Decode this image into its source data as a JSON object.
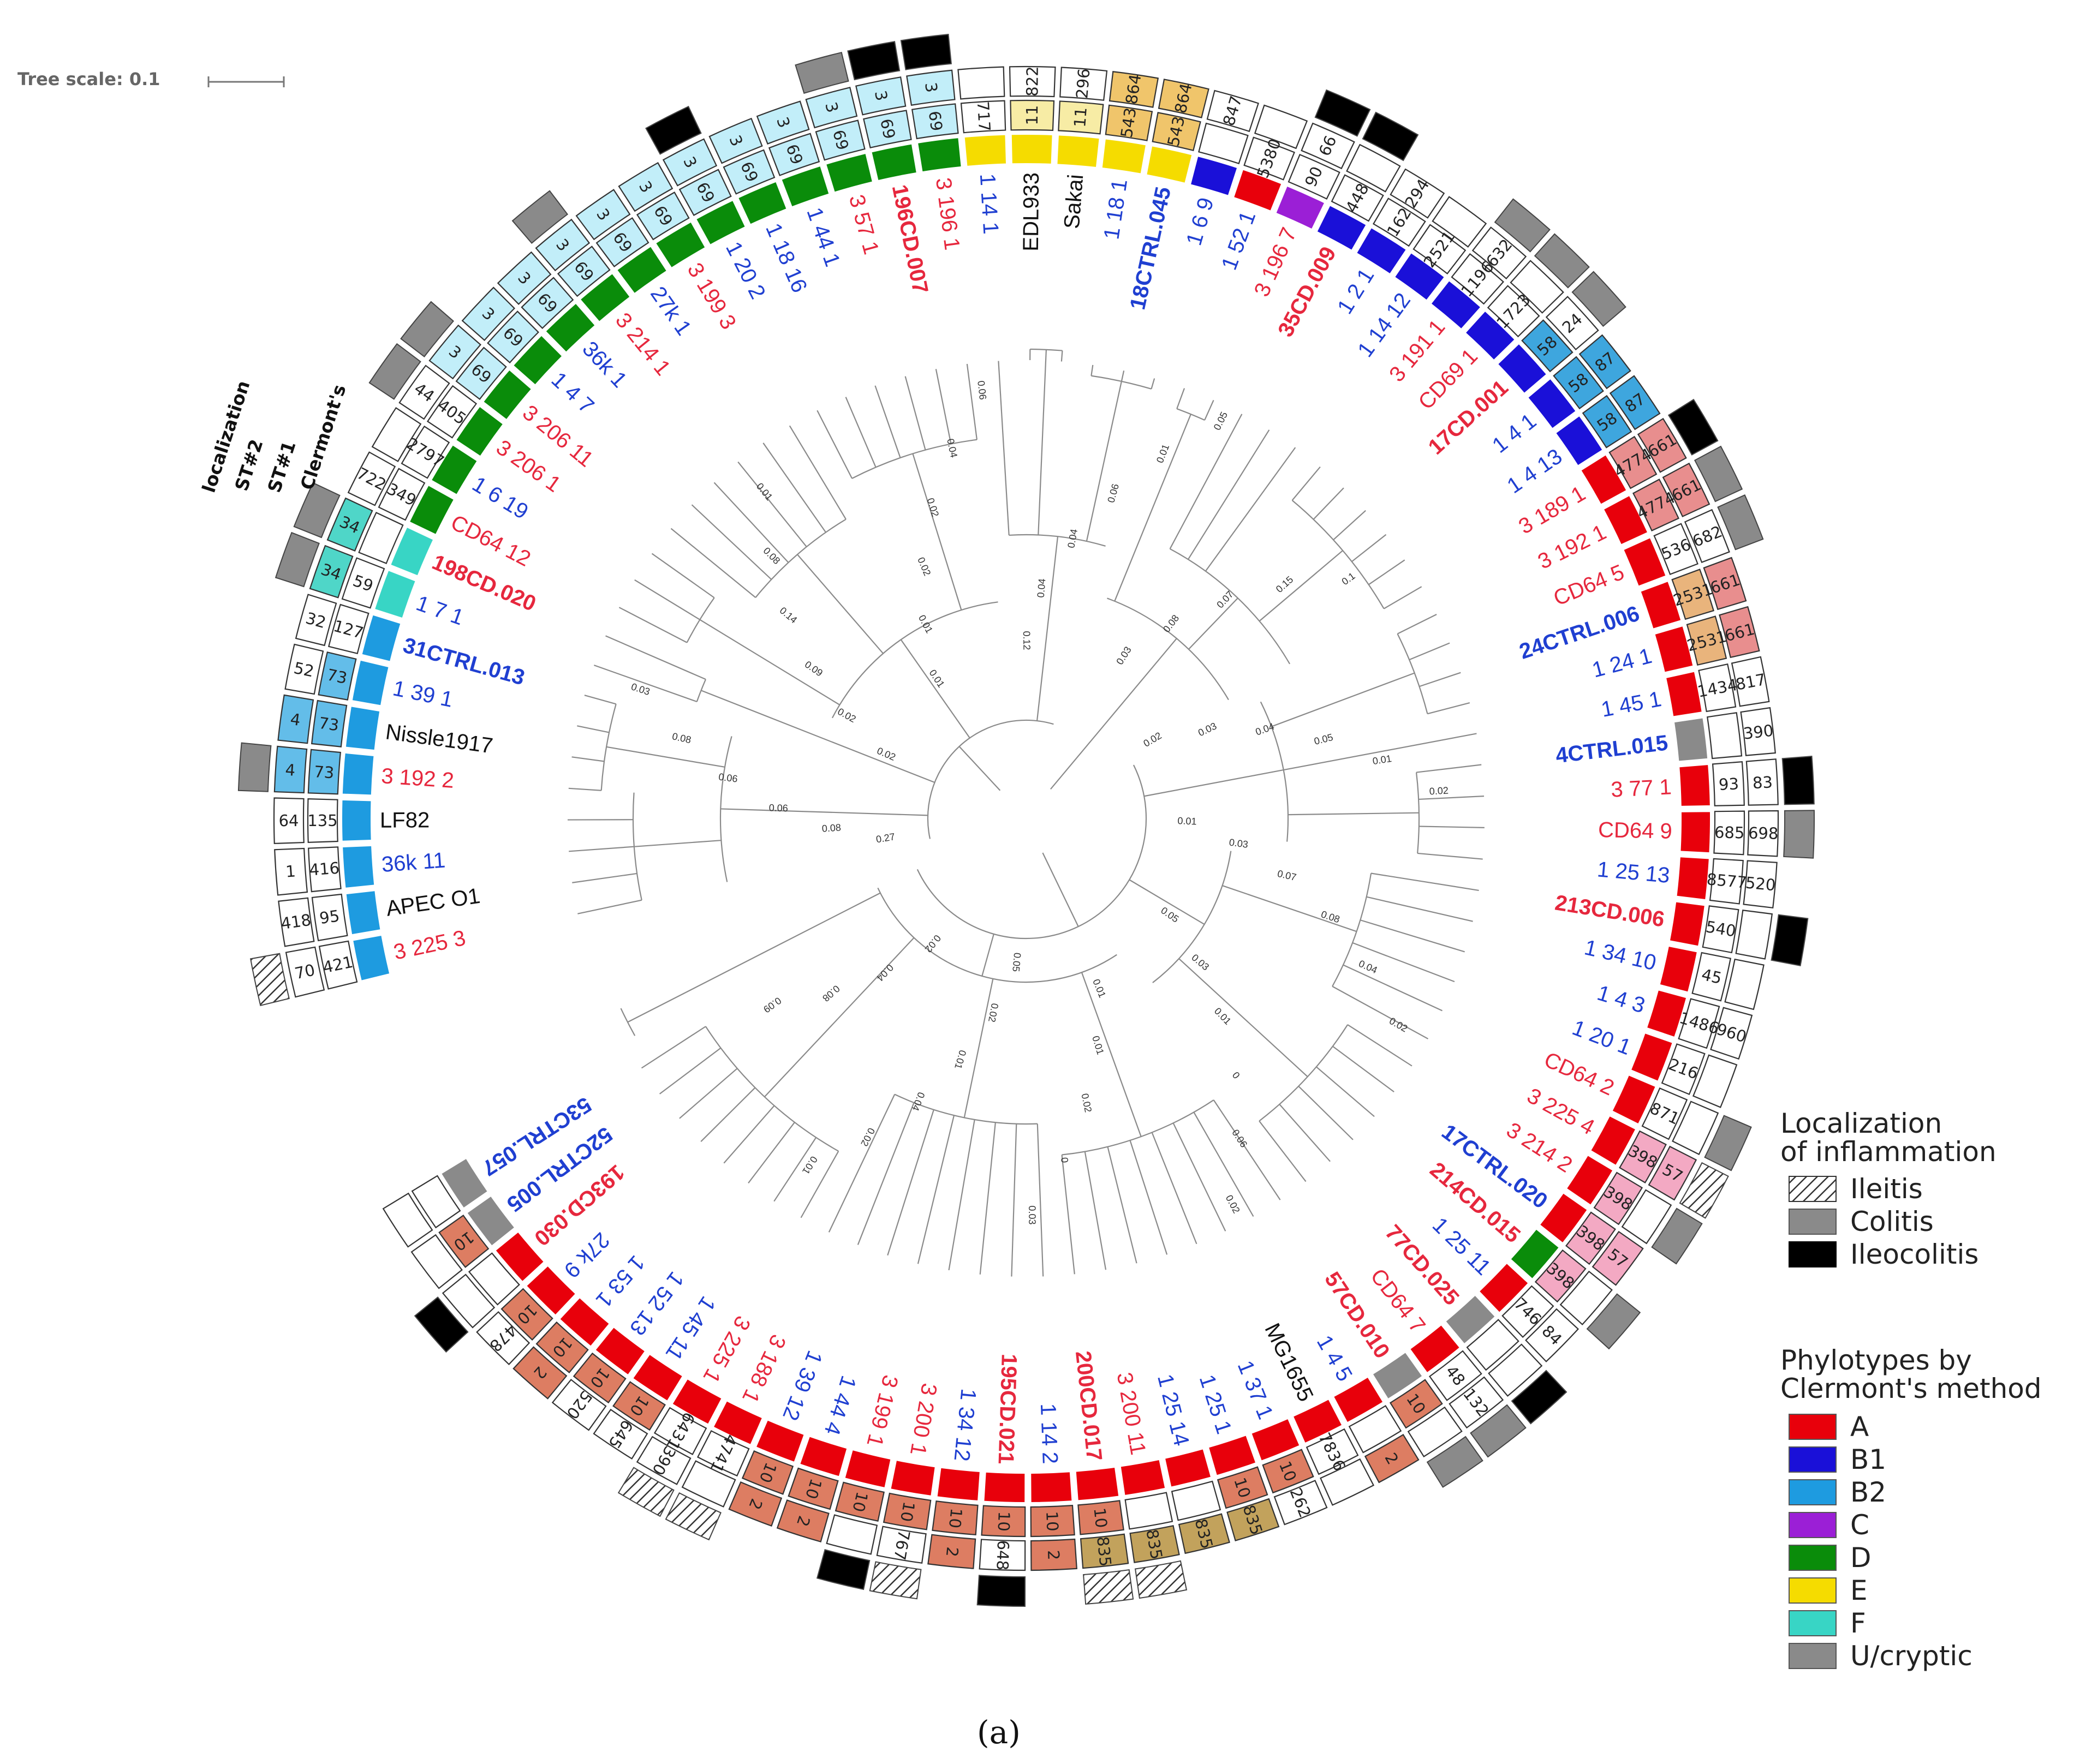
{
  "tree_scale": {
    "label": "Tree scale: 0.1"
  },
  "caption": "(a)",
  "ring_labels": {
    "localization": "localization",
    "st2": "ST#2",
    "st1": "ST#1",
    "clermont": "Clermont's"
  },
  "legend_localization": {
    "title_line1": "Localization",
    "title_line2": "of inflammation",
    "items": [
      {
        "label": "Ileitis",
        "key": "I"
      },
      {
        "label": "Colitis",
        "key": "C"
      },
      {
        "label": "Ileocolitis",
        "key": "IC"
      }
    ]
  },
  "legend_phylotypes": {
    "title_line1": "Phylotypes by",
    "title_line2": "Clermont's method",
    "items": [
      {
        "label": "A",
        "color": "#e8000b"
      },
      {
        "label": "B1",
        "color": "#1a10d8"
      },
      {
        "label": "B2",
        "color": "#1e9be0"
      },
      {
        "label": "C",
        "color": "#9b1fd6"
      },
      {
        "label": "D",
        "color": "#0a8c0a"
      },
      {
        "label": "E",
        "color": "#f5dc00"
      },
      {
        "label": "F",
        "color": "#38d5c5"
      },
      {
        "label": "U/cryptic",
        "color": "#8a8a8a"
      }
    ]
  },
  "chart_data": {
    "type": "circular-phylogenetic-tree",
    "ring_order_inner_to_outer": [
      "Clermont's",
      "ST#1",
      "ST#2",
      "localization"
    ],
    "leaves": [
      {
        "label": "3 225 3",
        "color": "red",
        "bold": false,
        "phylo": "B2",
        "st1": "421",
        "st2": "70",
        "loc": "I"
      },
      {
        "label": "APEC O1",
        "color": "black",
        "bold": false,
        "phylo": "B2",
        "st1": "95",
        "st2": "418",
        "loc": ""
      },
      {
        "label": "36k 11",
        "color": "blue",
        "bold": false,
        "phylo": "B2",
        "st1": "416",
        "st2": "1",
        "loc": ""
      },
      {
        "label": "LF82",
        "color": "black",
        "bold": false,
        "phylo": "B2",
        "st1": "135",
        "st2": "64",
        "loc": ""
      },
      {
        "label": "3 192 2",
        "color": "red",
        "bold": false,
        "phylo": "B2",
        "st1": "73",
        "st2": "4",
        "loc": "C"
      },
      {
        "label": "Nissle1917",
        "color": "black",
        "bold": false,
        "phylo": "B2",
        "st1": "73",
        "st2": "4",
        "loc": ""
      },
      {
        "label": "1 39 1",
        "color": "blue",
        "bold": false,
        "phylo": "B2",
        "st1": "73",
        "st2": "52",
        "loc": ""
      },
      {
        "label": "31CTRL.013",
        "color": "blue",
        "bold": true,
        "phylo": "B2",
        "st1": "127",
        "st2": "32",
        "loc": ""
      },
      {
        "label": "1 7 1",
        "color": "blue",
        "bold": false,
        "phylo": "F",
        "st1": "59",
        "st2": "34",
        "loc": "C"
      },
      {
        "label": "198CD.020",
        "color": "red",
        "bold": true,
        "phylo": "F",
        "st1": "",
        "st2": "34",
        "loc": "C"
      },
      {
        "label": "CD64 12",
        "color": "red",
        "bold": false,
        "phylo": "D",
        "st1": "349",
        "st2": "722",
        "loc": ""
      },
      {
        "label": "1 6 19",
        "color": "blue",
        "bold": false,
        "phylo": "D",
        "st1": "2797",
        "st2": "",
        "loc": ""
      },
      {
        "label": "3 206 1",
        "color": "red",
        "bold": false,
        "phylo": "D",
        "st1": "405",
        "st2": "44",
        "loc": "C"
      },
      {
        "label": "3 206 11",
        "color": "red",
        "bold": false,
        "phylo": "D",
        "st1": "69",
        "st2": "3",
        "loc": "C"
      },
      {
        "label": "1 4 7",
        "color": "blue",
        "bold": false,
        "phylo": "D",
        "st1": "69",
        "st2": "3",
        "loc": ""
      },
      {
        "label": "36k 1",
        "color": "blue",
        "bold": false,
        "phylo": "D",
        "st1": "69",
        "st2": "3",
        "loc": ""
      },
      {
        "label": "3 214 1",
        "color": "red",
        "bold": false,
        "phylo": "D",
        "st1": "69",
        "st2": "3",
        "loc": "C"
      },
      {
        "label": "27k 1",
        "color": "blue",
        "bold": false,
        "phylo": "D",
        "st1": "69",
        "st2": "3",
        "loc": ""
      },
      {
        "label": "3 199 3",
        "color": "red",
        "bold": false,
        "phylo": "D",
        "st1": "69",
        "st2": "3",
        "loc": ""
      },
      {
        "label": "1 20 2",
        "color": "blue",
        "bold": false,
        "phylo": "D",
        "st1": "69",
        "st2": "3",
        "loc": "IC"
      },
      {
        "label": "1 18 16",
        "color": "blue",
        "bold": false,
        "phylo": "D",
        "st1": "69",
        "st2": "3",
        "loc": ""
      },
      {
        "label": "1 44 1",
        "color": "blue",
        "bold": false,
        "phylo": "D",
        "st1": "69",
        "st2": "3",
        "loc": ""
      },
      {
        "label": "3 57 1",
        "color": "red",
        "bold": false,
        "phylo": "D",
        "st1": "69",
        "st2": "3",
        "loc": "C"
      },
      {
        "label": "196CD.007",
        "color": "red",
        "bold": true,
        "phylo": "D",
        "st1": "69",
        "st2": "3",
        "loc": "IC"
      },
      {
        "label": "3 196 1",
        "color": "red",
        "bold": false,
        "phylo": "D",
        "st1": "69",
        "st2": "3",
        "loc": "IC"
      },
      {
        "label": "1 14 1",
        "color": "blue",
        "bold": false,
        "phylo": "E",
        "st1": "717",
        "st2": "",
        "loc": ""
      },
      {
        "label": "EDL933",
        "color": "black",
        "bold": false,
        "phylo": "E",
        "st1": "11",
        "st2": "822",
        "loc": ""
      },
      {
        "label": "Sakai",
        "color": "black",
        "bold": false,
        "phylo": "E",
        "st1": "11",
        "st2": "296",
        "loc": ""
      },
      {
        "label": "1 18 1",
        "color": "blue",
        "bold": false,
        "phylo": "E",
        "st1": "543",
        "st2": "864",
        "loc": ""
      },
      {
        "label": "18CTRL.045",
        "color": "blue",
        "bold": true,
        "phylo": "E",
        "st1": "543",
        "st2": "864",
        "loc": ""
      },
      {
        "label": "1 6 9",
        "color": "blue",
        "bold": false,
        "phylo": "B1",
        "st1": "",
        "st2": "847",
        "loc": ""
      },
      {
        "label": "1 52 1",
        "color": "blue",
        "bold": false,
        "phylo": "A",
        "st1": "5380",
        "st2": "",
        "loc": ""
      },
      {
        "label": "3 196 7",
        "color": "red",
        "bold": false,
        "phylo": "C",
        "st1": "90",
        "st2": "66",
        "loc": "IC"
      },
      {
        "label": "35CD.009",
        "color": "red",
        "bold": true,
        "phylo": "B1",
        "st1": "448",
        "st2": "",
        "loc": "IC"
      },
      {
        "label": "1 2 1",
        "color": "blue",
        "bold": false,
        "phylo": "B1",
        "st1": "162",
        "st2": "294",
        "loc": ""
      },
      {
        "label": "1 14 12",
        "color": "blue",
        "bold": false,
        "phylo": "B1",
        "st1": "2521",
        "st2": "",
        "loc": ""
      },
      {
        "label": "3 191 1",
        "color": "red",
        "bold": false,
        "phylo": "B1",
        "st1": "1196",
        "st2": "632",
        "loc": "C"
      },
      {
        "label": "CD69 1",
        "color": "red",
        "bold": false,
        "phylo": "B1",
        "st1": "1723",
        "st2": "",
        "loc": "C"
      },
      {
        "label": "17CD.001",
        "color": "red",
        "bold": true,
        "phylo": "B1",
        "st1": "58",
        "st2": "24",
        "loc": "C"
      },
      {
        "label": "1 4 1",
        "color": "blue",
        "bold": false,
        "phylo": "B1",
        "st1": "58",
        "st2": "87",
        "loc": ""
      },
      {
        "label": "1 4 13",
        "color": "blue",
        "bold": false,
        "phylo": "B1",
        "st1": "58",
        "st2": "87",
        "loc": ""
      },
      {
        "label": "3 189 1",
        "color": "red",
        "bold": false,
        "phylo": "A",
        "st1": "4774",
        "st2": "661",
        "loc": "IC"
      },
      {
        "label": "3 192 1",
        "color": "red",
        "bold": false,
        "phylo": "A",
        "st1": "4774",
        "st2": "661",
        "loc": "C"
      },
      {
        "label": "CD64 5",
        "color": "red",
        "bold": false,
        "phylo": "A",
        "st1": "536",
        "st2": "682",
        "loc": "C"
      },
      {
        "label": "24CTRL.006",
        "color": "blue",
        "bold": true,
        "phylo": "A",
        "st1": "2531",
        "st2": "661",
        "loc": ""
      },
      {
        "label": "1 24 1",
        "color": "blue",
        "bold": false,
        "phylo": "A",
        "st1": "2531",
        "st2": "661",
        "loc": ""
      },
      {
        "label": "1 45 1",
        "color": "blue",
        "bold": false,
        "phylo": "A",
        "st1": "1434",
        "st2": "817",
        "loc": ""
      },
      {
        "label": "4CTRL.015",
        "color": "blue",
        "bold": true,
        "phylo": "U",
        "st1": "",
        "st2": "390",
        "loc": ""
      },
      {
        "label": "3 77 1",
        "color": "red",
        "bold": false,
        "phylo": "A",
        "st1": "93",
        "st2": "83",
        "loc": "IC"
      },
      {
        "label": "CD64 9",
        "color": "red",
        "bold": false,
        "phylo": "A",
        "st1": "685",
        "st2": "698",
        "loc": "C"
      },
      {
        "label": "1 25 13",
        "color": "blue",
        "bold": false,
        "phylo": "A",
        "st1": "8577",
        "st2": "520",
        "loc": ""
      },
      {
        "label": "213CD.006",
        "color": "red",
        "bold": true,
        "phylo": "A",
        "st1": "540",
        "st2": "",
        "loc": "IC"
      },
      {
        "label": "1 34 10",
        "color": "blue",
        "bold": false,
        "phylo": "A",
        "st1": "45",
        "st2": "",
        "loc": ""
      },
      {
        "label": "1 4 3",
        "color": "blue",
        "bold": false,
        "phylo": "A",
        "st1": "1486",
        "st2": "960",
        "loc": ""
      },
      {
        "label": "1 20 1",
        "color": "blue",
        "bold": false,
        "phylo": "A",
        "st1": "216",
        "st2": "",
        "loc": ""
      },
      {
        "label": "CD64 2",
        "color": "red",
        "bold": false,
        "phylo": "A",
        "st1": "871",
        "st2": "",
        "loc": "C"
      },
      {
        "label": "3 225 4",
        "color": "red",
        "bold": false,
        "phylo": "A",
        "st1": "398",
        "st2": "57",
        "loc": "I"
      },
      {
        "label": "3 214 2",
        "color": "red",
        "bold": false,
        "phylo": "A",
        "st1": "398",
        "st2": "",
        "loc": "C"
      },
      {
        "label": "17CTRL.020",
        "color": "blue",
        "bold": true,
        "phylo": "A",
        "st1": "398",
        "st2": "57",
        "loc": ""
      },
      {
        "label": "214CD.015",
        "color": "red",
        "bold": true,
        "phylo": "D",
        "st1": "398",
        "st2": "",
        "loc": "C"
      },
      {
        "label": "1 25 11",
        "color": "blue",
        "bold": false,
        "phylo": "A",
        "st1": "746",
        "st2": "84",
        "loc": ""
      },
      {
        "label": "77CD.025",
        "color": "red",
        "bold": true,
        "phylo": "U",
        "st1": "",
        "st2": "",
        "loc": "IC"
      },
      {
        "label": "CD64 7",
        "color": "red",
        "bold": false,
        "phylo": "A",
        "st1": "48",
        "st2": "132",
        "loc": "C"
      },
      {
        "label": "57CD.010",
        "color": "red",
        "bold": true,
        "phylo": "U",
        "st1": "10",
        "st2": "",
        "loc": "C"
      },
      {
        "label": "1 4 5",
        "color": "blue",
        "bold": false,
        "phylo": "A",
        "st1": "",
        "st2": "2",
        "loc": ""
      },
      {
        "label": "MG1655",
        "color": "black",
        "bold": false,
        "phylo": "A",
        "st1": "7836",
        "st2": "",
        "loc": ""
      },
      {
        "label": "1 37 1",
        "color": "blue",
        "bold": false,
        "phylo": "A",
        "st1": "10",
        "st2": "262",
        "loc": ""
      },
      {
        "label": "1 25 1",
        "color": "blue",
        "bold": false,
        "phylo": "A",
        "st1": "10",
        "st2": "835",
        "loc": ""
      },
      {
        "label": "1 25 14",
        "color": "blue",
        "bold": false,
        "phylo": "A",
        "st1": "",
        "st2": "835",
        "loc": ""
      },
      {
        "label": "3 200 11",
        "color": "red",
        "bold": false,
        "phylo": "A",
        "st1": "",
        "st2": "835",
        "loc": "I"
      },
      {
        "label": "200CD.017",
        "color": "red",
        "bold": true,
        "phylo": "A",
        "st1": "10",
        "st2": "835",
        "loc": "I"
      },
      {
        "label": "1 14 2",
        "color": "blue",
        "bold": false,
        "phylo": "A",
        "st1": "10",
        "st2": "2",
        "loc": ""
      },
      {
        "label": "195CD.021",
        "color": "red",
        "bold": true,
        "phylo": "A",
        "st1": "10",
        "st2": "648",
        "loc": "IC"
      },
      {
        "label": "1 34 12",
        "color": "blue",
        "bold": false,
        "phylo": "A",
        "st1": "10",
        "st2": "2",
        "loc": ""
      },
      {
        "label": "3 200 1",
        "color": "red",
        "bold": false,
        "phylo": "A",
        "st1": "10",
        "st2": "767",
        "loc": "I"
      },
      {
        "label": "3 199 1",
        "color": "red",
        "bold": false,
        "phylo": "A",
        "st1": "10",
        "st2": "",
        "loc": "IC"
      },
      {
        "label": "1 44 4",
        "color": "blue",
        "bold": false,
        "phylo": "A",
        "st1": "10",
        "st2": "2",
        "loc": ""
      },
      {
        "label": "1 39 12",
        "color": "blue",
        "bold": false,
        "phylo": "A",
        "st1": "10",
        "st2": "2",
        "loc": ""
      },
      {
        "label": "3 188 1",
        "color": "red",
        "bold": false,
        "phylo": "A",
        "st1": "4741",
        "st2": "",
        "loc": "I"
      },
      {
        "label": "3 225 1",
        "color": "red",
        "bold": false,
        "phylo": "A",
        "st1": "6431",
        "st2": "390",
        "loc": "I"
      },
      {
        "label": "1 45 11",
        "color": "blue",
        "bold": false,
        "phylo": "A",
        "st1": "10",
        "st2": "645",
        "loc": ""
      },
      {
        "label": "1 52 13",
        "color": "blue",
        "bold": false,
        "phylo": "A",
        "st1": "10",
        "st2": "520",
        "loc": ""
      },
      {
        "label": "1 53 1",
        "color": "blue",
        "bold": false,
        "phylo": "A",
        "st1": "10",
        "st2": "2",
        "loc": ""
      },
      {
        "label": "27k 9",
        "color": "blue",
        "bold": false,
        "phylo": "A",
        "st1": "10",
        "st2": "478",
        "loc": ""
      },
      {
        "label": "193CD.030",
        "color": "red",
        "bold": true,
        "phylo": "A",
        "st1": "",
        "st2": "",
        "loc": "IC"
      },
      {
        "label": "52CTRL.005",
        "color": "blue",
        "bold": true,
        "phylo": "U",
        "st1": "10",
        "st2": "",
        "loc": ""
      },
      {
        "label": "53CTRL.057",
        "color": "blue",
        "bold": true,
        "phylo": "U",
        "st1": "",
        "st2": "",
        "loc": ""
      }
    ],
    "branch_length_labels": [
      "0.27",
      "0.08",
      "0.06",
      "0.06",
      "0.08",
      "0.03",
      "0.02",
      "0.02",
      "0.09",
      "0.14",
      "0.08",
      "0.01",
      "0.01",
      "0.01",
      "0.02",
      "0.02",
      "0.04",
      "0.06",
      "0.12",
      "0.04",
      "0.04",
      "0.06",
      "0.01",
      "0.05",
      "0.03",
      "0.08",
      "0.07",
      "0.15",
      "0.1",
      "0.02",
      "0.03",
      "0.04",
      "0.05",
      "0.01",
      "0.02",
      "0.01",
      "0.03",
      "0.07",
      "0.08",
      "0.04",
      "0.02",
      "0.05",
      "0.03",
      "0.01",
      "0",
      "0.06",
      "0.02",
      "0.01",
      "0.01",
      "0.02",
      "0",
      "0.03",
      "0.05",
      "0.02",
      "0.01",
      "0.04",
      "0.02",
      "0.01",
      "0.02",
      "0.04",
      "0.08",
      "0.09"
    ]
  }
}
